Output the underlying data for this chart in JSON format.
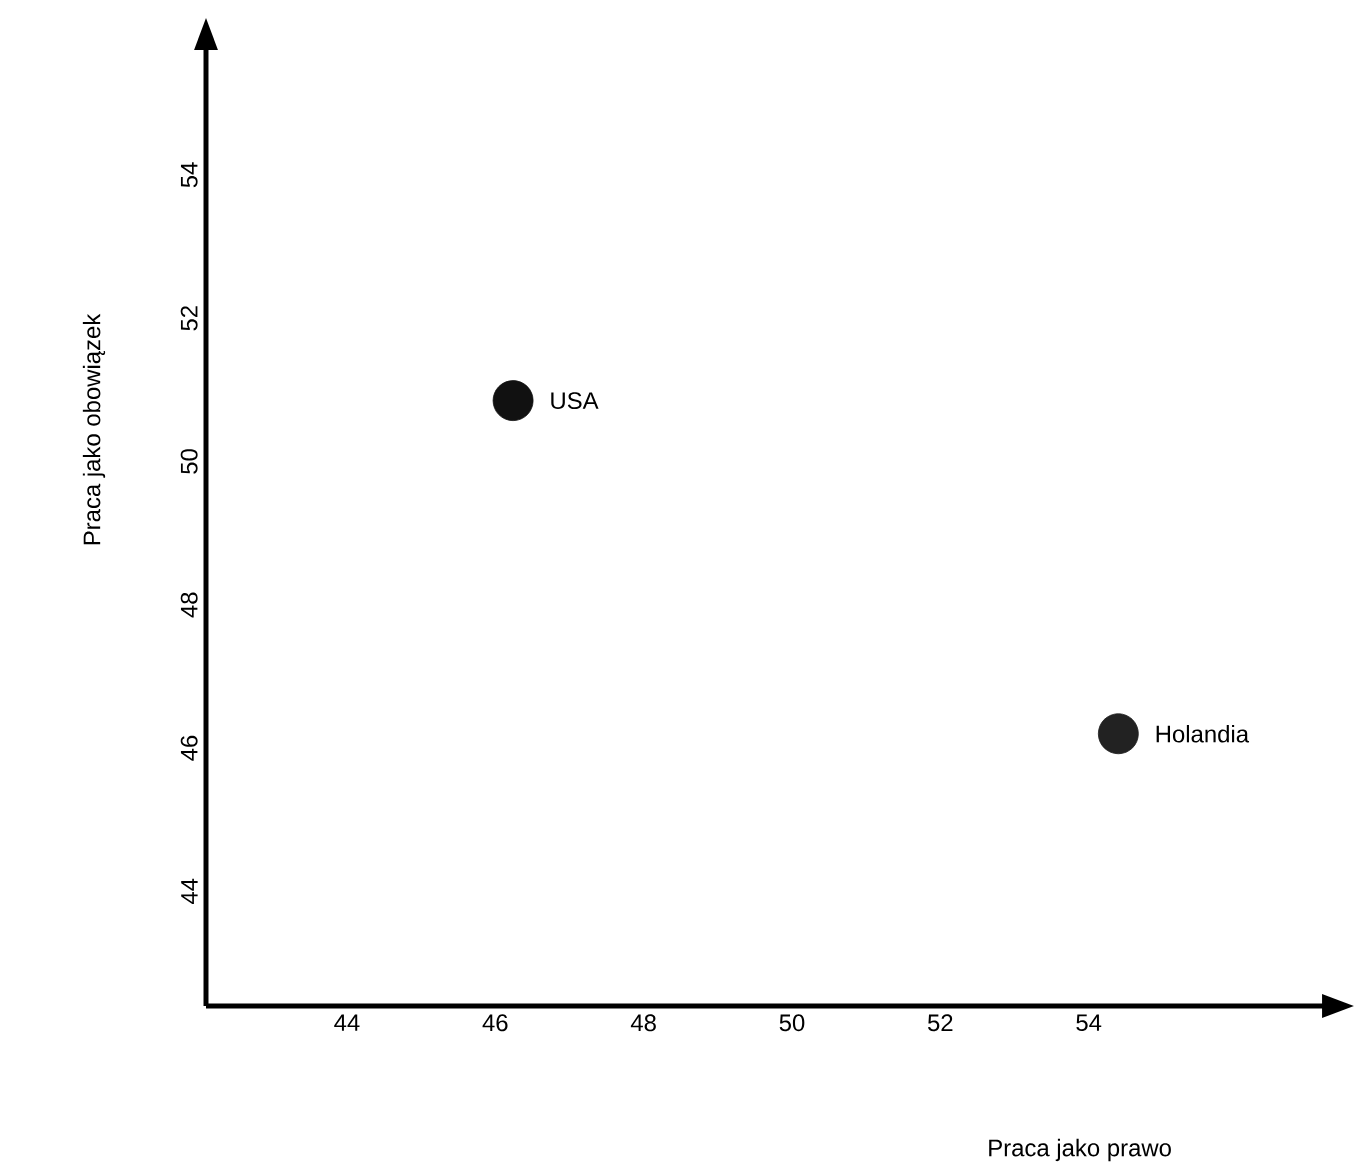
{
  "chart_data": {
    "type": "scatter",
    "xlabel": "Praca jako prawo",
    "ylabel": "Praca jako obowiązek",
    "xlim": [
      42.1,
      57.2
    ],
    "ylim": [
      42.4,
      55.8
    ],
    "xticks": [
      44,
      46,
      48,
      50,
      52,
      54
    ],
    "yticks": [
      44,
      46,
      48,
      50,
      52,
      54
    ],
    "marker": "circle",
    "grid": false,
    "series": [
      {
        "name": "USA",
        "color": "#111111",
        "x": [
          46.24
        ],
        "values": [
          50.85
        ]
      },
      {
        "name": "Holandia",
        "color": "#222222",
        "x": [
          54.4
        ],
        "values": [
          46.2
        ]
      }
    ]
  }
}
